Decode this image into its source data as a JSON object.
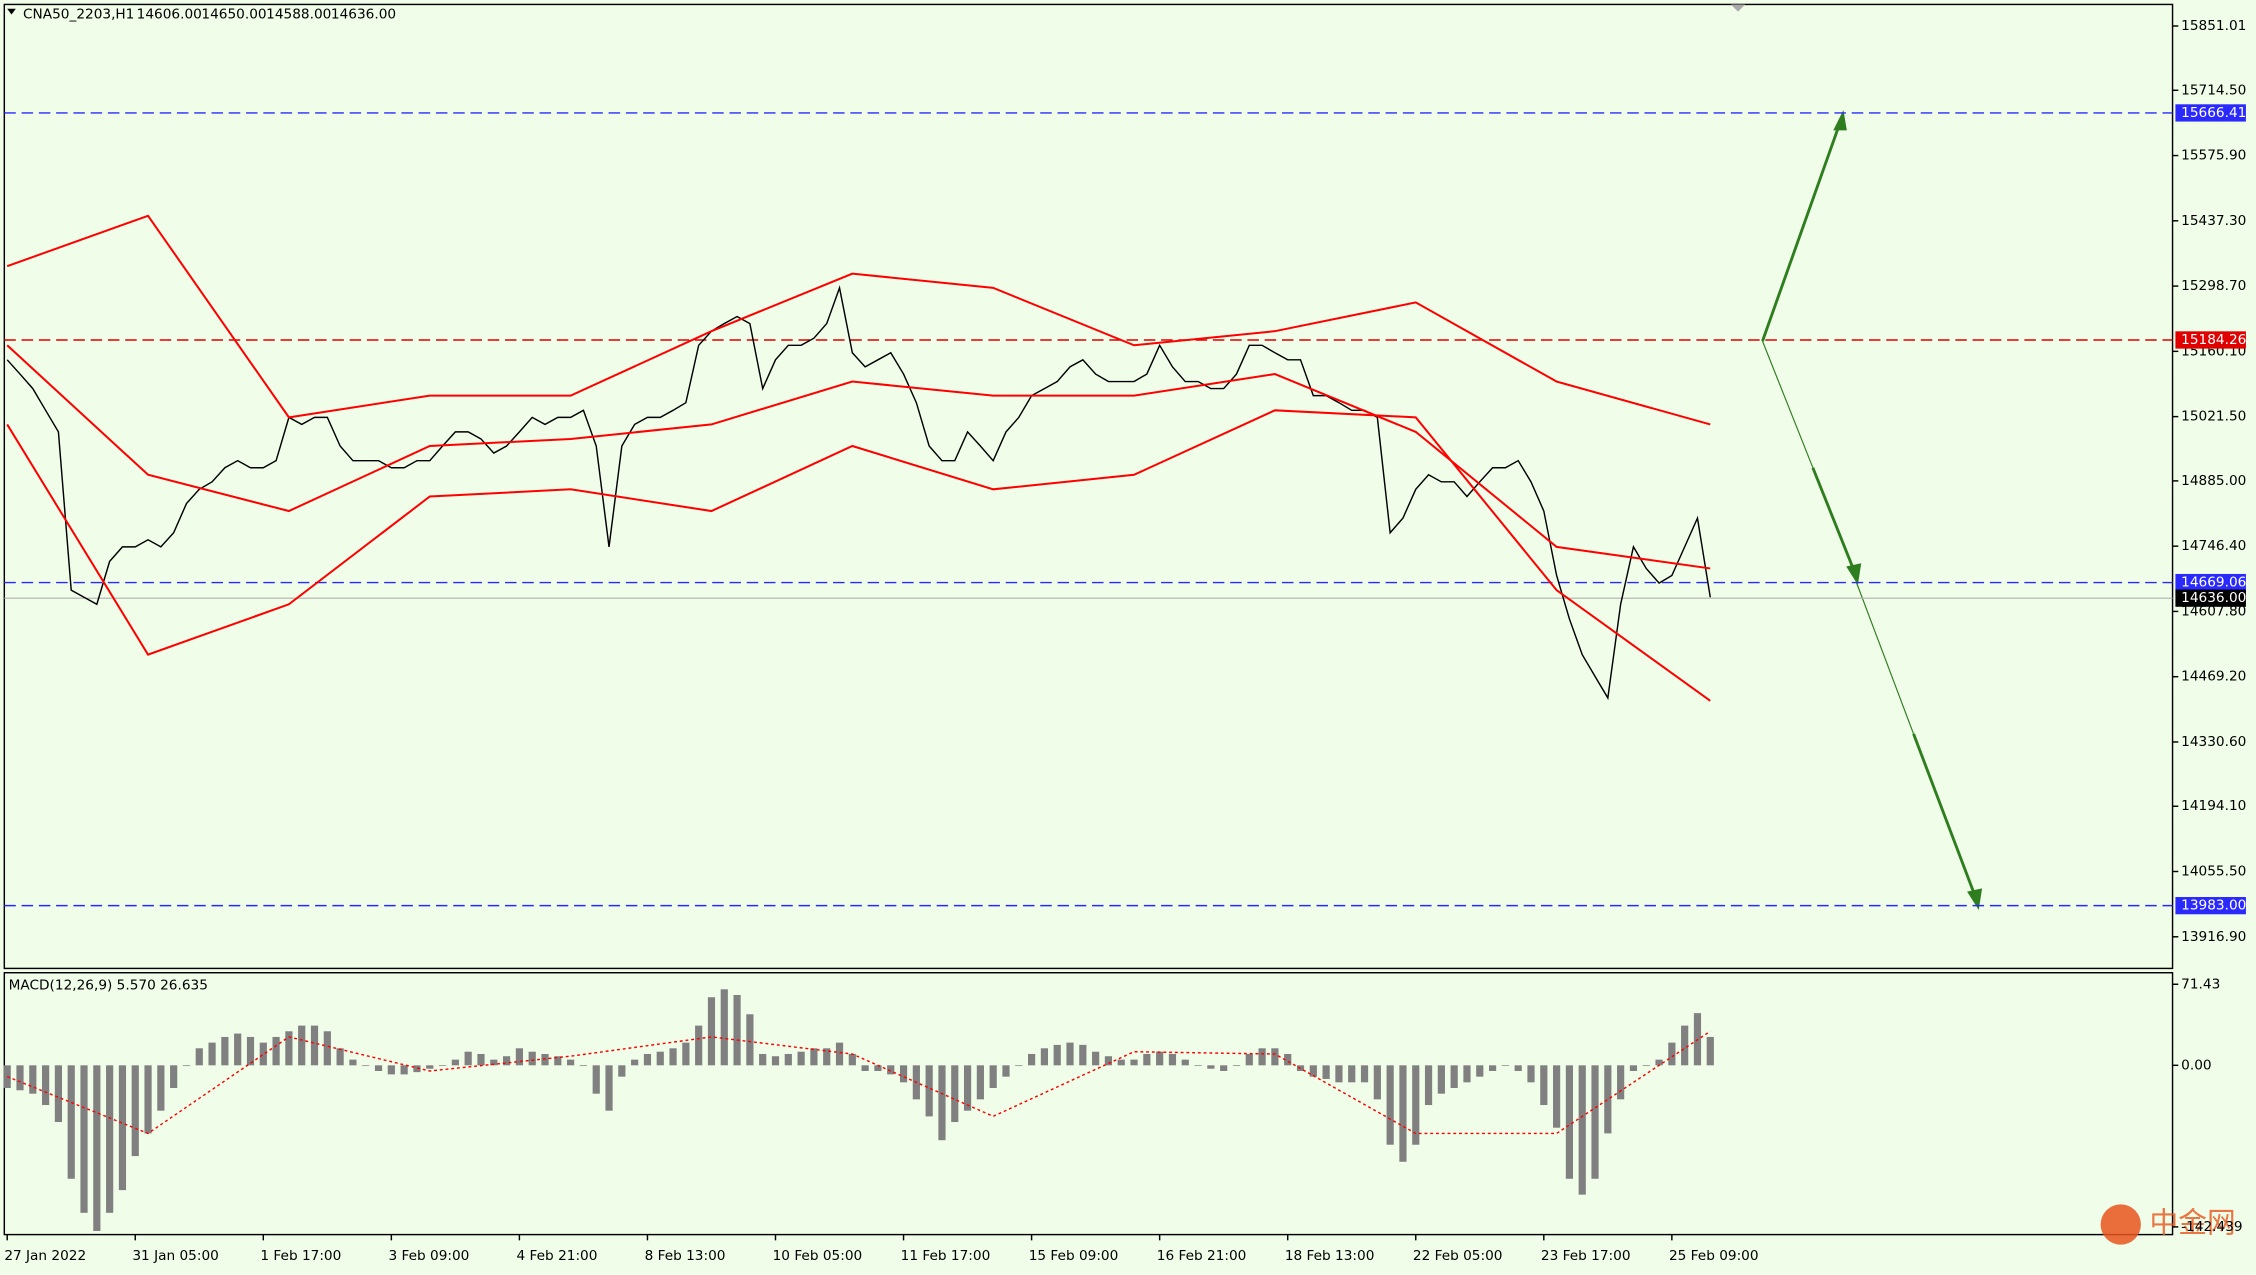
{
  "chart_data": [
    {
      "type": "line",
      "info": {
        "symbol": "CNA50_2203,H1",
        "ohlc": [
          "14606.00",
          "14650.00",
          "14588.00",
          "14636.00"
        ]
      },
      "categories": [
        "27 Jan 2022",
        null,
        null,
        null,
        null,
        null,
        null,
        null,
        null,
        null,
        "31 Jan 05:00",
        null,
        null,
        null,
        null,
        null,
        null,
        null,
        null,
        null,
        "1 Feb 17:00",
        null,
        null,
        null,
        null,
        null,
        null,
        null,
        null,
        null,
        "3 Feb 09:00",
        null,
        null,
        null,
        null,
        null,
        null,
        null,
        null,
        null,
        "4 Feb 21:00",
        null,
        null,
        null,
        null,
        null,
        null,
        null,
        null,
        null,
        "8 Feb 13:00",
        null,
        null,
        null,
        null,
        null,
        null,
        null,
        null,
        null,
        "10 Feb 05:00",
        null,
        null,
        null,
        null,
        null,
        null,
        null,
        null,
        null,
        "11 Feb 17:00",
        null,
        null,
        null,
        null,
        null,
        null,
        null,
        null,
        null,
        "15 Feb 09:00",
        null,
        null,
        null,
        null,
        null,
        null,
        null,
        null,
        null,
        "16 Feb 21:00",
        null,
        null,
        null,
        null,
        null,
        null,
        null,
        null,
        null,
        "18 Feb 13:00",
        null,
        null,
        null,
        null,
        null,
        null,
        null,
        null,
        null,
        "22 Feb 05:00",
        null,
        null,
        null,
        null,
        null,
        null,
        null,
        null,
        null,
        "23 Feb 17:00",
        null,
        null,
        null,
        null,
        null,
        null,
        null,
        null,
        null,
        "25 Feb 09:00",
        null,
        null,
        null
      ],
      "series": [
        {
          "color": "#000000",
          "values": [
            15142,
            15112,
            15081,
            15035,
            14989,
            14653,
            14638,
            14623,
            14714,
            14745,
            14745,
            14760,
            14745,
            14775,
            14837,
            14867,
            14883,
            14913,
            14928,
            14913,
            14913,
            14928,
            15020,
            15005,
            15020,
            15020,
            14959,
            14928,
            14928,
            14928,
            14913,
            14913,
            14928,
            14928,
            14959,
            14989,
            14989,
            14974,
            14944,
            14959,
            14989,
            15020,
            15005,
            15020,
            15020,
            15035,
            14959,
            14745,
            14959,
            15005,
            15020,
            15020,
            15035,
            15051,
            15173,
            15203,
            15219,
            15234,
            15219,
            15081,
            15142,
            15173,
            15173,
            15188,
            15219,
            15295,
            15157,
            15127,
            15142,
            15157,
            15112,
            15051,
            14959,
            14928,
            14928,
            14989,
            14959,
            14928,
            14989,
            15020,
            15066,
            15081,
            15096,
            15127,
            15142,
            15112,
            15096,
            15096,
            15096,
            15112,
            15173,
            15127,
            15096,
            15096,
            15081,
            15081,
            15112,
            15173,
            15173,
            15157,
            15142,
            15142,
            15066,
            15066,
            15051,
            15035,
            15035,
            15020,
            14775,
            14806,
            14867,
            14898,
            14883,
            14883,
            14852,
            14883,
            14913,
            14913,
            14928,
            14883,
            14821,
            14684,
            14592,
            14516,
            14470,
            14424,
            14623,
            14745,
            14699,
            14668,
            14684,
            14745,
            14806,
            14638
          ]
        },
        {
          "color": "#ff0000",
          "x": [
            0,
            11,
            22,
            33,
            44,
            55,
            66,
            77,
            88,
            99,
            110,
            121,
            133
          ],
          "values": [
            15341,
            15448,
            15020,
            15066,
            15066,
            15203,
            15325,
            15295,
            15173,
            15203,
            15264,
            15096,
            15005
          ]
        },
        {
          "color": "#ff0000",
          "x": [
            0,
            11,
            22,
            33,
            44,
            55,
            66,
            77,
            88,
            99,
            110,
            121,
            133
          ],
          "values": [
            15173,
            14898,
            14821,
            14959,
            14974,
            15005,
            15096,
            15066,
            15066,
            15112,
            14989,
            14745,
            14699
          ]
        },
        {
          "color": "#ff0000",
          "x": [
            0,
            11,
            22,
            33,
            44,
            55,
            66,
            77,
            88,
            99,
            110,
            121,
            133
          ],
          "values": [
            15005,
            14516,
            14623,
            14852,
            14867,
            14821,
            14959,
            14867,
            14898,
            15035,
            15020,
            14653,
            14418
          ]
        }
      ],
      "levels": [
        {
          "value": 15666.41,
          "label": "15666.41",
          "color": "#2a2aff"
        },
        {
          "value": 15184.26,
          "label": "15184.26",
          "color": "#e00000"
        },
        {
          "value": 14669.06,
          "label": "14669.06",
          "color": "#2a2aff"
        },
        {
          "value": 14636.0,
          "label": "14636.00",
          "color": "#000000"
        },
        {
          "value": 13983.0,
          "label": "13983.00",
          "color": "#2a2aff"
        }
      ],
      "ylim": [
        13849.7,
        15896.8
      ],
      "yticks": [
        {
          "value": 15851.01,
          "label": "15851.01"
        },
        {
          "value": 15714.5,
          "label": "15714.50"
        },
        {
          "value": 15575.9,
          "label": "15575.90"
        },
        {
          "value": 15437.3,
          "label": "15437.30"
        },
        {
          "value": 15298.7,
          "label": "15298.70"
        },
        {
          "value": 15160.1,
          "label": "15160.10"
        },
        {
          "value": 15021.5,
          "label": "15021.50"
        },
        {
          "value": 14885,
          "label": "14885.00"
        },
        {
          "value": 14746.4,
          "label": "14746.40"
        },
        {
          "value": 14607.8,
          "label": "14607.80"
        },
        {
          "value": 14469.2,
          "label": "14469.20"
        },
        {
          "value": 14330.6,
          "label": "14330.60"
        },
        {
          "value": 14194.1,
          "label": "14194.10"
        },
        {
          "value": 14055.5,
          "label": "14055.50"
        },
        {
          "value": 13916.9,
          "label": "13916.90"
        }
      ]
    },
    {
      "type": "bar",
      "label": "MACD(12,26,9) 5.570 26.635",
      "series": [
        {
          "color": "#808080",
          "values": [
            -20,
            -22,
            -25,
            -35,
            -50,
            -100,
            -130,
            -146,
            -130,
            -110,
            -80,
            -60,
            -40,
            -20,
            0,
            15,
            20,
            25,
            28,
            25,
            20,
            25,
            30,
            35,
            35,
            30,
            15,
            5,
            0,
            -5,
            -8,
            -8,
            -6,
            -3,
            0,
            5,
            12,
            10,
            5,
            8,
            15,
            12,
            10,
            8,
            5,
            0,
            -25,
            -40,
            -10,
            5,
            10,
            12,
            15,
            20,
            35,
            60,
            67,
            62,
            45,
            10,
            8,
            10,
            12,
            15,
            15,
            20,
            10,
            -5,
            -5,
            -8,
            -15,
            -30,
            -45,
            -66,
            -50,
            -40,
            -30,
            -20,
            -10,
            0,
            10,
            15,
            18,
            20,
            18,
            12,
            8,
            5,
            5,
            10,
            12,
            10,
            5,
            0,
            -3,
            -5,
            0,
            10,
            15,
            15,
            10,
            -5,
            -10,
            -12,
            -15,
            -15,
            -15,
            -30,
            -70,
            -85,
            -70,
            -35,
            -25,
            -20,
            -15,
            -10,
            -5,
            0,
            -5,
            -15,
            -35,
            -55,
            -100,
            -114,
            -100,
            -60,
            -30,
            -5,
            0,
            5,
            20,
            35,
            46,
            25
          ]
        },
        {
          "color": "#ff0000",
          "x": [
            0,
            11,
            22,
            33,
            44,
            55,
            66,
            77,
            88,
            99,
            110,
            121,
            133
          ],
          "values": [
            -10,
            -60,
            25,
            -5,
            8,
            25,
            10,
            -45,
            12,
            10,
            -60,
            -60,
            30
          ]
        }
      ],
      "ylim": [
        -149.2,
        81.6
      ],
      "yticks": [
        {
          "value": 71.43,
          "label": "71.43"
        },
        {
          "value": 0,
          "label": "0.00"
        },
        {
          "value": -142.439,
          "label": "-142.439"
        }
      ]
    },
    {
      "type": "watermark",
      "text": "中金网"
    }
  ]
}
